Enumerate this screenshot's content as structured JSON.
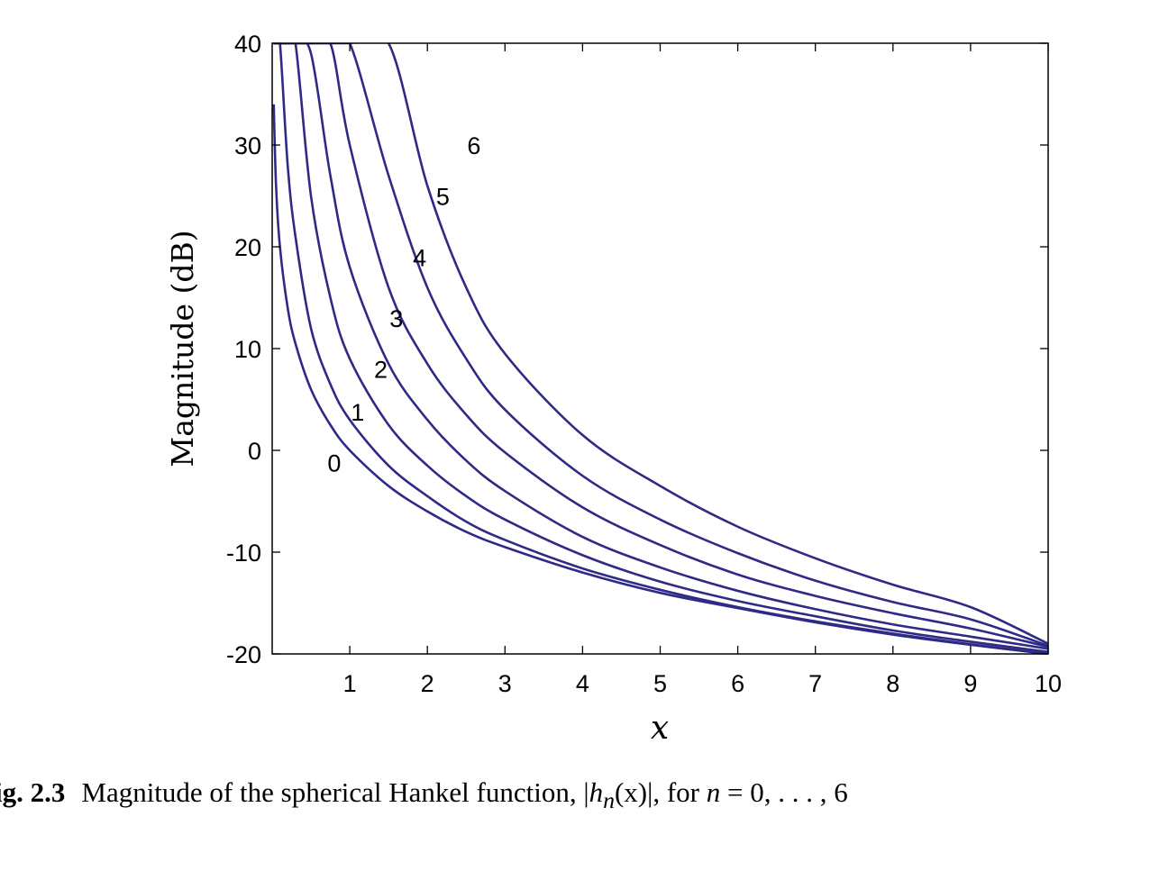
{
  "chart_data": {
    "type": "line",
    "title": "",
    "xlabel": "x",
    "ylabel": "Magnitude (dB)",
    "xlim": [
      0,
      10
    ],
    "ylim": [
      -20,
      40
    ],
    "grid": false,
    "x_ticks": [
      1,
      2,
      3,
      4,
      5,
      6,
      7,
      8,
      9,
      10
    ],
    "y_ticks": [
      40,
      30,
      20,
      10,
      0,
      -10,
      -20
    ],
    "x_tick_labels": [
      "1",
      "2",
      "3",
      "4",
      "5",
      "6",
      "7",
      "8",
      "9",
      "10"
    ],
    "y_tick_labels": [
      "40",
      "30",
      "20",
      "10",
      "0",
      "-10",
      "-20"
    ],
    "line_color": "#2e2a86",
    "x": [
      0.02,
      0.05,
      0.1,
      0.2,
      0.3,
      0.5,
      0.75,
      1,
      1.5,
      2,
      2.5,
      3,
      4,
      5,
      6,
      7,
      8,
      9,
      10
    ],
    "series": [
      {
        "values": [
          34,
          26,
          20,
          14,
          10.5,
          6,
          2.5,
          0,
          -3.5,
          -6,
          -8,
          -9.5,
          -12,
          -14,
          -15.5,
          -16.9,
          -18.1,
          -19.1,
          -20
        ]
      },
      {
        "values": [
          40,
          40,
          40,
          28,
          21,
          12,
          6.5,
          3,
          -1.5,
          -4.5,
          -7,
          -8.8,
          -11.6,
          -13.7,
          -15.4,
          -16.8,
          -18,
          -19.05,
          -20
        ]
      },
      {
        "values": [
          40,
          40,
          40,
          40,
          40,
          25,
          15,
          9,
          2.5,
          -1.5,
          -4.5,
          -6.8,
          -10.3,
          -12.9,
          -14.8,
          -16.3,
          -17.7,
          -18.8,
          -19.8
        ]
      },
      {
        "values": [
          40,
          40,
          40,
          40,
          40,
          39,
          27,
          18,
          8.5,
          3,
          -1,
          -4,
          -8.5,
          -11.5,
          -13.8,
          -15.6,
          -17.1,
          -18.3,
          -19.5
        ]
      },
      {
        "values": [
          40,
          40,
          40,
          40,
          40,
          40,
          40,
          30,
          16,
          8.5,
          3.5,
          -0.2,
          -5.6,
          -9.3,
          -12.2,
          -14.3,
          -16,
          -17.5,
          -19.3
        ]
      },
      {
        "values": [
          40,
          40,
          40,
          40,
          40,
          40,
          40,
          40,
          27,
          16,
          9,
          4,
          -2.5,
          -6.8,
          -10.1,
          -12.8,
          -14.9,
          -16.6,
          -19.2
        ]
      },
      {
        "values": [
          40,
          40,
          40,
          40,
          40,
          40,
          40,
          40,
          40,
          26,
          16,
          9.5,
          1.5,
          -3.5,
          -7.5,
          -10.6,
          -13.2,
          -15.4,
          -19
        ]
      }
    ],
    "annotations": [
      {
        "text": "0",
        "x": 0.8,
        "y": -1.2
      },
      {
        "text": "1",
        "x": 1.1,
        "y": 3.8
      },
      {
        "text": "2",
        "x": 1.4,
        "y": 8
      },
      {
        "text": "3",
        "x": 1.6,
        "y": 13
      },
      {
        "text": "4",
        "x": 1.9,
        "y": 19
      },
      {
        "text": "5",
        "x": 2.2,
        "y": 25
      },
      {
        "text": "6",
        "x": 2.6,
        "y": 30
      }
    ]
  },
  "caption": {
    "label": "ig. 2.3",
    "text_before": "Magnitude of the spherical Hankel function, |",
    "function": "h",
    "subscript": "n",
    "argument": "(x)",
    "text_middle": "|, for ",
    "variable": "n",
    "text_after": " = 0, . . . , 6"
  }
}
